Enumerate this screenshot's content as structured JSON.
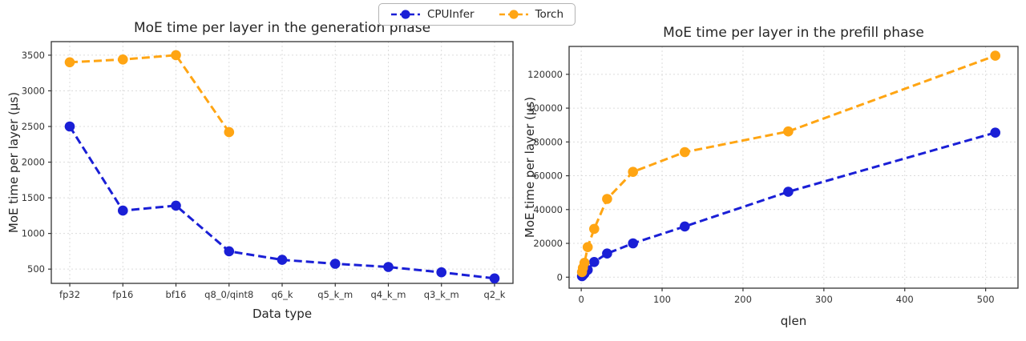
{
  "figure": {
    "background": "#ffffff",
    "grid_color": "#dcdcdc",
    "spine_color": "#333333",
    "tick_color": "#333333"
  },
  "legend": {
    "items": [
      {
        "label": "CPUInfer",
        "color": "#1a1fd6"
      },
      {
        "label": "Torch",
        "color": "#ffa513"
      }
    ],
    "position": "top-center"
  },
  "chart_data": [
    {
      "type": "line",
      "title": "MoE time per layer in the generation phase",
      "xlabel": "Data type",
      "ylabel": "MoE time per layer (µs)",
      "x_type": "category",
      "categories": [
        "fp32",
        "fp16",
        "bf16",
        "q8_0/qint8",
        "q6_k",
        "q5_k_m",
        "q4_k_m",
        "q3_k_m",
        "q2_k"
      ],
      "ylim": [
        300,
        3690
      ],
      "yticks": [
        500,
        1000,
        1500,
        2000,
        2500,
        3000,
        3500
      ],
      "grid": true,
      "line_style": "dashed",
      "marker": "circle",
      "series": [
        {
          "name": "CPUInfer",
          "color": "#1a1fd6",
          "values": [
            2500,
            1320,
            1390,
            750,
            630,
            575,
            530,
            455,
            370
          ]
        },
        {
          "name": "Torch",
          "color": "#ffa513",
          "values": [
            3400,
            3440,
            3500,
            2420,
            null,
            null,
            null,
            null,
            null
          ]
        }
      ]
    },
    {
      "type": "line",
      "title": "MoE time per layer in the prefill phase",
      "xlabel": "qlen",
      "ylabel": "MoE time per layer (µs)",
      "x_type": "numeric",
      "xlim": [
        -15,
        540
      ],
      "xticks": [
        0,
        100,
        200,
        300,
        400,
        500
      ],
      "ylim": [
        -6500,
        136500
      ],
      "yticks": [
        0,
        20000,
        40000,
        60000,
        80000,
        100000,
        120000
      ],
      "grid": true,
      "line_style": "dashed",
      "marker": "circle",
      "series": [
        {
          "name": "CPUInfer",
          "color": "#1a1fd6",
          "x": [
            1,
            2,
            4,
            8,
            16,
            32,
            64,
            128,
            256,
            512
          ],
          "values": [
            600,
            1100,
            2100,
            4300,
            9000,
            14000,
            20000,
            30000,
            50500,
            85500
          ]
        },
        {
          "name": "Torch",
          "color": "#ffa513",
          "x": [
            1,
            2,
            4,
            8,
            16,
            32,
            64,
            128,
            256,
            512
          ],
          "values": [
            3000,
            5500,
            8500,
            17800,
            28600,
            46300,
            62300,
            74000,
            86200,
            131000
          ]
        }
      ]
    }
  ]
}
